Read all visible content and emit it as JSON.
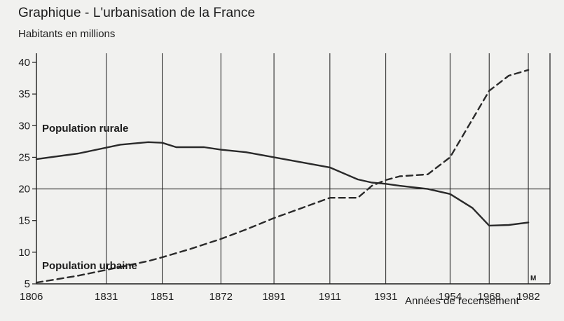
{
  "page": {
    "title": "Graphique - L'urbanisation de la France",
    "corner_mark": "M"
  },
  "colors": {
    "background": "#f1f1ef",
    "ink": "#1c1c1c",
    "rural_line": "#2a2a2a",
    "urban_line": "#2a2a2a"
  },
  "chart_data": {
    "type": "line",
    "ylabel": "Habitants en millions",
    "xlabel": "Années de recensement",
    "x_ticks": [
      1806,
      1831,
      1851,
      1872,
      1891,
      1911,
      1931,
      1954,
      1968,
      1982
    ],
    "y_ticks": [
      5,
      10,
      15,
      20,
      25,
      30,
      35,
      40
    ],
    "ylim": [
      5,
      42
    ],
    "xlim": [
      1806,
      1988
    ],
    "grid": "vertical lines at census years, horizontal line at 20",
    "series": [
      {
        "name": "Population rurale",
        "style": "solid",
        "points": [
          [
            1806,
            24.7
          ],
          [
            1821,
            25.6
          ],
          [
            1836,
            27.0
          ],
          [
            1846,
            27.4
          ],
          [
            1851,
            27.3
          ],
          [
            1856,
            26.6
          ],
          [
            1866,
            26.6
          ],
          [
            1872,
            26.2
          ],
          [
            1881,
            25.8
          ],
          [
            1891,
            25.0
          ],
          [
            1901,
            24.2
          ],
          [
            1911,
            23.4
          ],
          [
            1921,
            21.5
          ],
          [
            1926,
            21.0
          ],
          [
            1931,
            20.8
          ],
          [
            1936,
            20.5
          ],
          [
            1946,
            20.0
          ],
          [
            1954,
            19.2
          ],
          [
            1962,
            17.0
          ],
          [
            1968,
            14.2
          ],
          [
            1975,
            14.3
          ],
          [
            1982,
            14.7
          ]
        ]
      },
      {
        "name": "Population urbaine",
        "style": "dashed",
        "points": [
          [
            1806,
            5.2
          ],
          [
            1821,
            6.3
          ],
          [
            1831,
            7.2
          ],
          [
            1846,
            8.6
          ],
          [
            1851,
            9.2
          ],
          [
            1861,
            10.5
          ],
          [
            1872,
            12.1
          ],
          [
            1881,
            13.6
          ],
          [
            1891,
            15.4
          ],
          [
            1901,
            17.0
          ],
          [
            1911,
            18.6
          ],
          [
            1921,
            18.6
          ],
          [
            1926,
            20.5
          ],
          [
            1931,
            21.4
          ],
          [
            1936,
            22.0
          ],
          [
            1946,
            22.3
          ],
          [
            1954,
            25.0
          ],
          [
            1962,
            31.0
          ],
          [
            1968,
            35.5
          ],
          [
            1975,
            37.9
          ],
          [
            1982,
            38.8
          ]
        ]
      }
    ]
  }
}
